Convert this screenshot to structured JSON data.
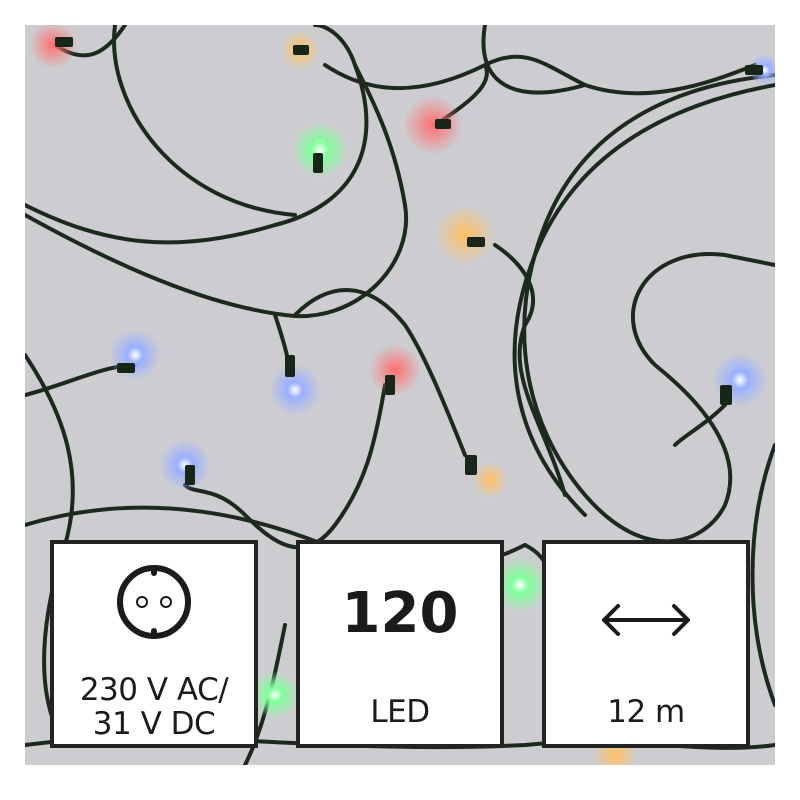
{
  "specs": [
    {
      "icon": "power-socket-icon",
      "line1": "230 V AC/",
      "line2": "31 V DC"
    },
    {
      "value": "120",
      "label": "LED"
    },
    {
      "icon": "double-arrow-icon",
      "label": "12 m"
    }
  ],
  "colors": {
    "frame": "#232323",
    "background": "#cdcdd1",
    "wire": "#1c2a1e",
    "led_colors": [
      "#ff4a4a",
      "#ffb640",
      "#6aff8a",
      "#8aa8ff"
    ]
  }
}
